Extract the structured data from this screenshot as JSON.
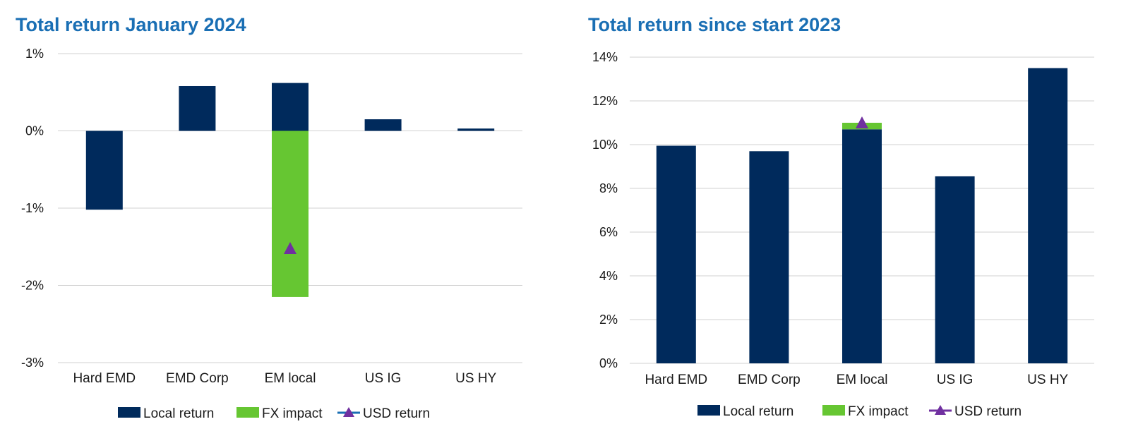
{
  "chart_data": [
    {
      "type": "bar",
      "title": "Total return January 2024",
      "categories": [
        "Hard EMD",
        "EMD Corp",
        "EM local",
        "US IG",
        "US HY"
      ],
      "series": [
        {
          "name": "Local return",
          "kind": "bar",
          "color": "#002a5c",
          "values": [
            -1.02,
            0.58,
            0.62,
            0.15,
            0.03
          ]
        },
        {
          "name": "FX impact",
          "kind": "bar",
          "color": "#66c632",
          "values": [
            0,
            0,
            -2.15,
            0,
            0
          ]
        },
        {
          "name": "USD return",
          "kind": "marker",
          "color": "#7030a0",
          "values": [
            null,
            null,
            -1.52,
            null,
            null
          ]
        }
      ],
      "ylim": [
        -3,
        1
      ],
      "yticks": [
        1,
        0,
        -1,
        -2,
        -3
      ],
      "ytick_labels": [
        "1%",
        "0%",
        "-1%",
        "-2%",
        "-3%"
      ],
      "xlabel": "",
      "ylabel": "",
      "grid": true,
      "legend": "bottom"
    },
    {
      "type": "bar",
      "title": "Total return since start 2023",
      "categories": [
        "Hard EMD",
        "EMD Corp",
        "EM local",
        "US IG",
        "US HY"
      ],
      "series": [
        {
          "name": "Local return",
          "kind": "bar",
          "color": "#002a5c",
          "values": [
            9.95,
            9.7,
            10.7,
            8.55,
            13.5
          ]
        },
        {
          "name": "FX impact",
          "kind": "bar",
          "color": "#66c632",
          "values": [
            0,
            0,
            0.3,
            0,
            0
          ]
        },
        {
          "name": "USD return",
          "kind": "marker",
          "color": "#7030a0",
          "values": [
            null,
            null,
            11.0,
            null,
            null
          ]
        }
      ],
      "ylim": [
        0,
        14
      ],
      "yticks": [
        14,
        12,
        10,
        8,
        6,
        4,
        2,
        0
      ],
      "ytick_labels": [
        "14%",
        "12%",
        "10%",
        "8%",
        "6%",
        "4%",
        "2%",
        "0%"
      ],
      "xlabel": "",
      "ylabel": "",
      "grid": true,
      "legend": "bottom"
    }
  ]
}
